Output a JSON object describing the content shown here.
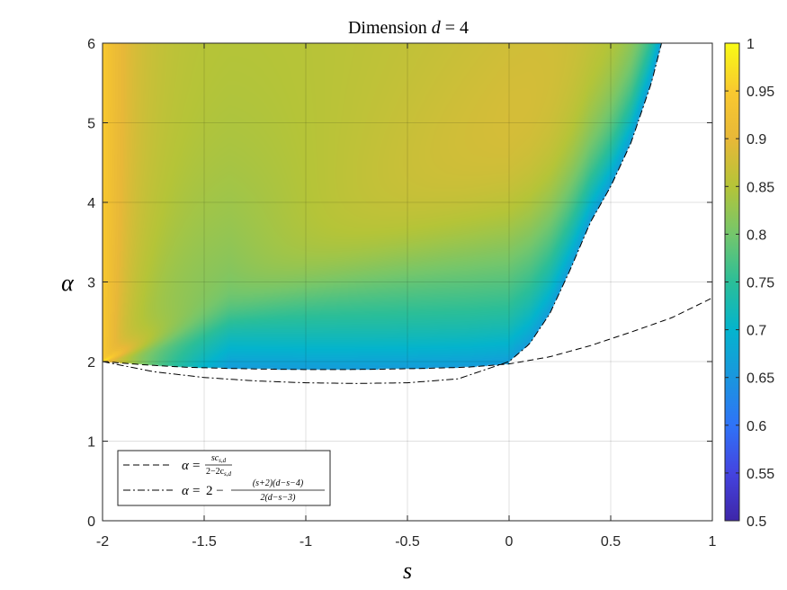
{
  "chart_data": {
    "type": "heatmap",
    "title": "Dimension d = 4",
    "title_parts": {
      "prefix": "Dimension ",
      "var": "d",
      "rest": " = 4"
    },
    "xlabel": "s",
    "ylabel": "α",
    "xlim": [
      -2,
      1
    ],
    "ylim": [
      0,
      6
    ],
    "xticks": [
      -2,
      -1.5,
      -1,
      -0.5,
      0,
      0.5,
      1
    ],
    "xtick_labels": [
      "-2",
      "-1.5",
      "-1",
      "-0.5",
      "0",
      "0.5",
      "1"
    ],
    "yticks": [
      0,
      1,
      2,
      3,
      4,
      5,
      6
    ],
    "ytick_labels": [
      "0",
      "1",
      "2",
      "3",
      "4",
      "5",
      "6"
    ],
    "grid": true,
    "colorbar": {
      "range": [
        0.5,
        1
      ],
      "ticks": [
        0.5,
        0.55,
        0.6,
        0.65,
        0.7,
        0.75,
        0.8,
        0.85,
        0.9,
        0.95,
        1
      ],
      "tick_labels": [
        "0.5",
        "0.55",
        "0.6",
        "0.65",
        "0.7",
        "0.75",
        "0.8",
        "0.85",
        "0.9",
        "0.95",
        "1"
      ],
      "colormap": "parula"
    },
    "legend": {
      "location": "bottom-left",
      "entries": [
        {
          "style": "dashed",
          "lhs": "α",
          "eq": "=",
          "num": "sc",
          "num_sub": "s,d",
          "den": "2−2c",
          "den_sub": "s,d"
        },
        {
          "style": "dashdot",
          "lhs": "α",
          "eq": "=",
          "pre": "2 −",
          "num": "(s+2)(d−s−4)",
          "den": "2(d−s−3)"
        }
      ]
    },
    "series": [
      {
        "style": "dashed",
        "x": [
          -2,
          -1.8,
          -1.6,
          -1.4,
          -1.2,
          -1,
          -0.8,
          -0.6,
          -0.4,
          -0.2,
          0,
          0.2,
          0.4,
          0.6,
          0.8,
          1
        ],
        "y": [
          2.0,
          1.96,
          1.93,
          1.915,
          1.905,
          1.9,
          1.9,
          1.905,
          1.915,
          1.93,
          1.97,
          2.06,
          2.2,
          2.37,
          2.55,
          2.8
        ]
      },
      {
        "style": "dashdot",
        "x": [
          -2,
          -1.75,
          -1.5,
          -1.25,
          -1,
          -0.75,
          -0.5,
          -0.25,
          0,
          0.1,
          0.2,
          0.3,
          0.4,
          0.5,
          0.6,
          0.7,
          0.75
        ],
        "y": [
          2.0,
          1.873,
          1.8,
          1.757,
          1.733,
          1.725,
          1.733,
          1.783,
          2.0,
          2.22,
          2.6,
          3.15,
          3.75,
          4.2,
          4.75,
          5.5,
          6.0
        ]
      }
    ],
    "heatmap_description": {
      "boundary_lower": "dashed curve for s ≤ 0, dashdot curve for s ≥ 0",
      "values": "≈1 near s=-2 for α>2, ≈0.9 along diagonal fan, ≈0.85 upper right, decreasing to ≈0.65 near α≈2"
    }
  }
}
